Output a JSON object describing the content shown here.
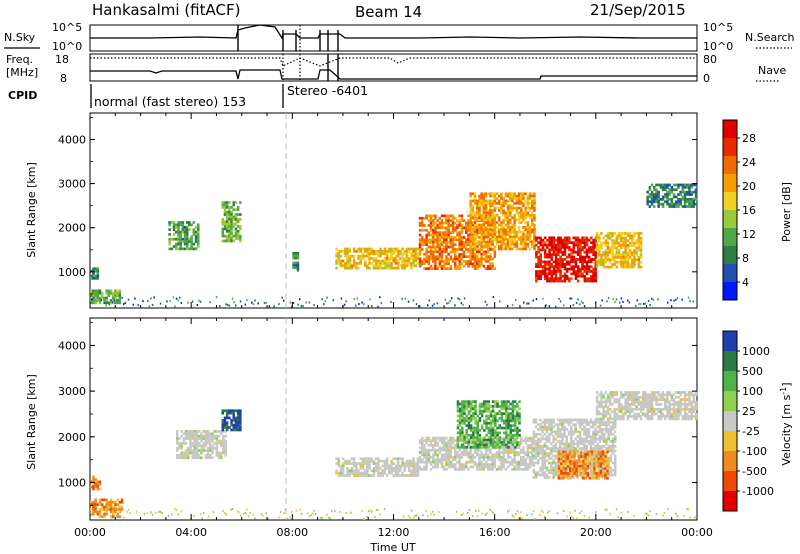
{
  "header": {
    "station": "Hankasalmi (fitACF)",
    "beam": "Beam 14",
    "date": "21/Sep/2015"
  },
  "status_panels": {
    "nsky_label": "N.Sky",
    "nsearch_label": "N.Search",
    "freq_label_line1": "Freq.",
    "freq_label_line2": "[MHz]",
    "nave_label": "Nave",
    "cpid_label": "CPID",
    "noise_left_ticks": [
      "10^5",
      "10^0"
    ],
    "noise_right_ticks": [
      "10^5",
      "10^0"
    ],
    "freq_ticks": [
      "18",
      "8"
    ],
    "nave_ticks": [
      "80",
      "0"
    ],
    "cpid_modes": [
      {
        "label": "normal (fast stereo) 153",
        "start_hour": 0.0
      },
      {
        "label": "Stereo -6401",
        "start_hour": 7.7
      }
    ]
  },
  "axes": {
    "xlabel": "Time UT",
    "x_ticks": [
      "00:00",
      "04:00",
      "08:00",
      "12:00",
      "16:00",
      "20:00",
      "00:00"
    ],
    "ylabel": "Slant Range [km]",
    "y_ticks": [
      "1000",
      "2000",
      "3000",
      "4000"
    ]
  },
  "colorbars": {
    "power": {
      "label": "Power [dB]",
      "ticks": [
        "4",
        "8",
        "12",
        "16",
        "20",
        "24",
        "28"
      ],
      "colors": [
        "#0018ff",
        "#1f4fb0",
        "#2e7d46",
        "#4fa84a",
        "#9ac93a",
        "#f0d020",
        "#f5a000",
        "#f26a00",
        "#e82a00",
        "#e00000"
      ]
    },
    "velocity": {
      "label": "Velocity [m s^-1]",
      "ticks": [
        "1000",
        "500",
        "100",
        "25",
        "-25",
        "-100",
        "-500",
        "-1000"
      ],
      "colors": [
        "#2040b0",
        "#2e7a45",
        "#4fb34a",
        "#8fd050",
        "#c8c8c4",
        "#f0c030",
        "#f08a20",
        "#ee4a00",
        "#e00000"
      ]
    }
  },
  "chart_data": [
    {
      "type": "heatmap",
      "title": "Power",
      "xlabel": "Time UT",
      "ylabel": "Slant Range [km]",
      "x_range_hours": [
        0,
        24
      ],
      "ylim": [
        180,
        4600
      ],
      "colorbar_label": "Power [dB]",
      "regions": [
        {
          "t": [
            0.0,
            0.3
          ],
          "r": [
            850,
            1100
          ],
          "level": 8
        },
        {
          "t": [
            0.0,
            1.2
          ],
          "r": [
            300,
            600
          ],
          "level": 12
        },
        {
          "t": [
            3.1,
            4.3
          ],
          "r": [
            1550,
            2150
          ],
          "level": 10
        },
        {
          "t": [
            5.2,
            5.9
          ],
          "r": [
            1700,
            2600
          ],
          "level": 12
        },
        {
          "t": [
            8.0,
            8.2
          ],
          "r": [
            1050,
            1450
          ],
          "level": 8
        },
        {
          "t": [
            9.7,
            13.0
          ],
          "r": [
            1100,
            1550
          ],
          "level": 18
        },
        {
          "t": [
            13.0,
            16.0
          ],
          "r": [
            1100,
            2300
          ],
          "level": 22
        },
        {
          "t": [
            15.0,
            17.6
          ],
          "r": [
            1500,
            2800
          ],
          "level": 20
        },
        {
          "t": [
            17.6,
            20.0
          ],
          "r": [
            800,
            1800
          ],
          "level": 28
        },
        {
          "t": [
            20.0,
            21.8
          ],
          "r": [
            1100,
            1900
          ],
          "level": 18
        },
        {
          "t": [
            22.0,
            24.0
          ],
          "r": [
            2500,
            3000
          ],
          "level": 8
        }
      ]
    },
    {
      "type": "heatmap",
      "title": "Velocity",
      "xlabel": "Time UT",
      "ylabel": "Slant Range [km]",
      "x_range_hours": [
        0,
        24
      ],
      "ylim": [
        180,
        4600
      ],
      "colorbar_label": "Velocity [m s^-1]",
      "regions": [
        {
          "t": [
            0.0,
            0.4
          ],
          "r": [
            850,
            1150
          ],
          "vel": -100
        },
        {
          "t": [
            0.0,
            1.3
          ],
          "r": [
            250,
            650
          ],
          "vel": -100
        },
        {
          "t": [
            3.4,
            5.4
          ],
          "r": [
            1550,
            2150
          ],
          "vel": 0
        },
        {
          "t": [
            5.2,
            5.9
          ],
          "r": [
            2150,
            2600
          ],
          "vel": 500
        },
        {
          "t": [
            9.7,
            13.0
          ],
          "r": [
            1150,
            1550
          ],
          "vel": 0
        },
        {
          "t": [
            13.0,
            17.5
          ],
          "r": [
            1300,
            2000
          ],
          "vel": 0
        },
        {
          "t": [
            14.5,
            17.0
          ],
          "r": [
            1800,
            2800
          ],
          "vel": 100
        },
        {
          "t": [
            17.5,
            20.8
          ],
          "r": [
            1100,
            2400
          ],
          "vel": 0
        },
        {
          "t": [
            18.5,
            20.5
          ],
          "r": [
            1100,
            1700
          ],
          "vel": -100
        },
        {
          "t": [
            20.0,
            24.0
          ],
          "r": [
            2400,
            3000
          ],
          "vel": 0
        }
      ]
    }
  ]
}
